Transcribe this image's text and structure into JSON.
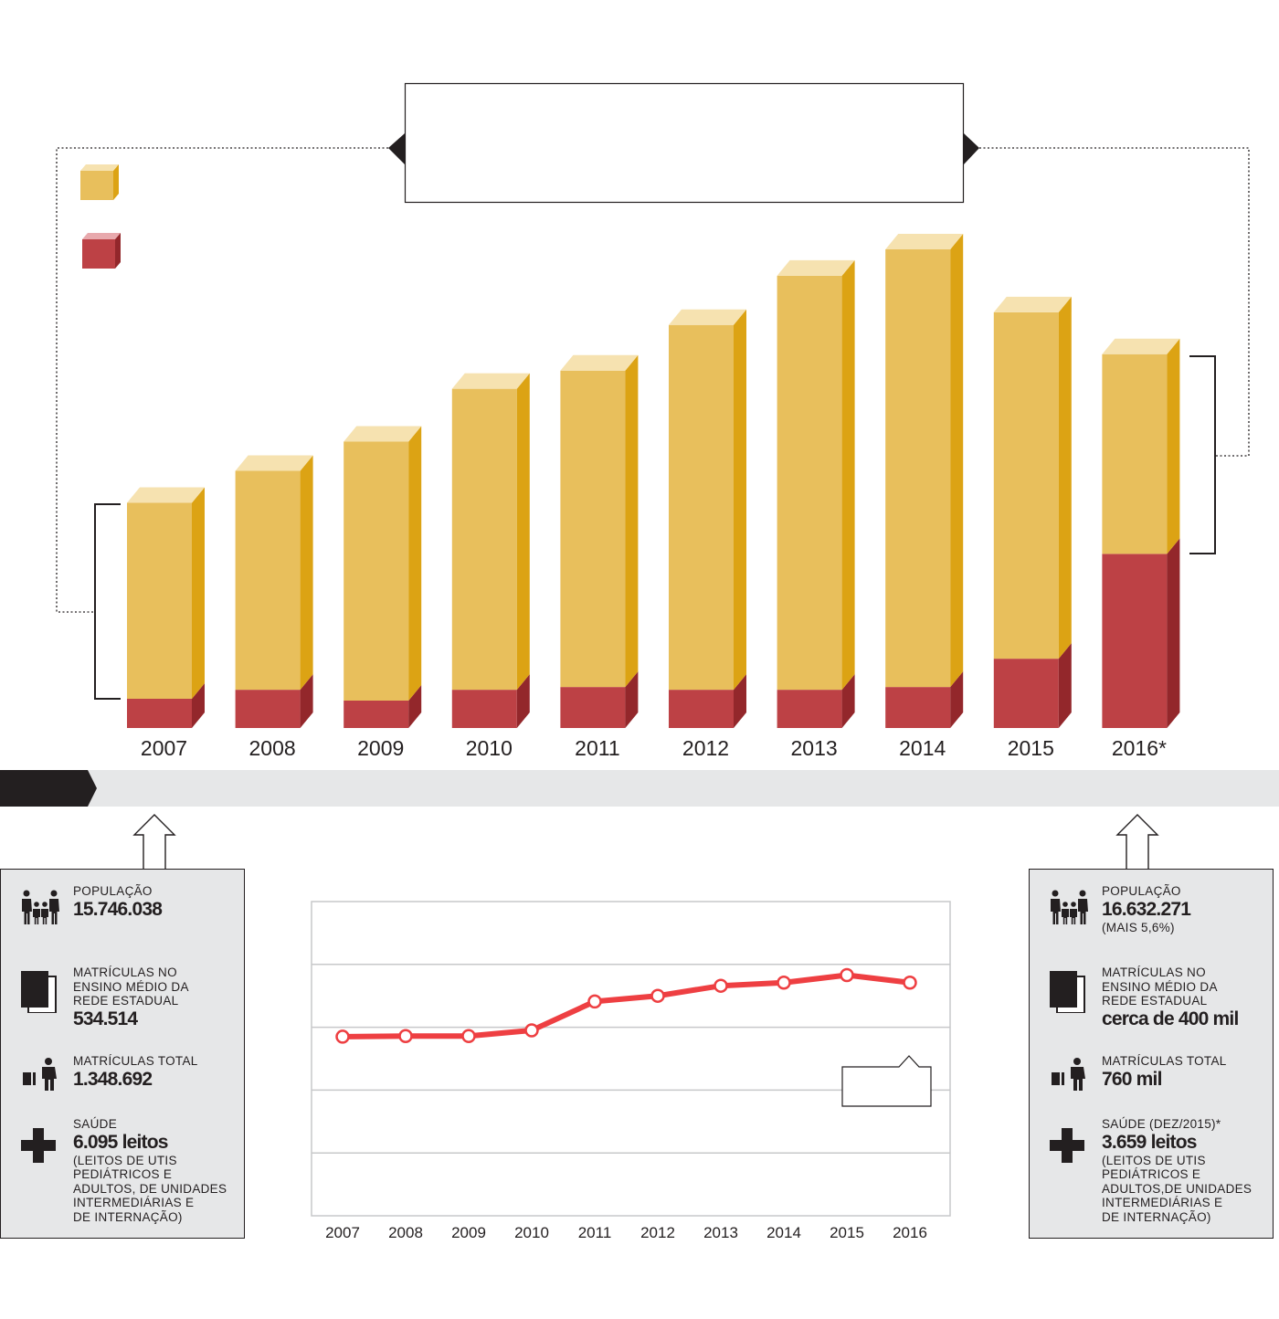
{
  "colors": {
    "yellow_front": "#e8bf5c",
    "yellow_top": "#f6e2b0",
    "yellow_side": "#dca314",
    "red_front": "#bd4145",
    "red_side": "#93272b",
    "line_red": "#ee3f42",
    "panel_gray": "#e6e7e8",
    "ink": "#231f20"
  },
  "chart_data": [
    {
      "type": "bar",
      "stacked": true,
      "categories": [
        "2007",
        "2008",
        "2009",
        "2010",
        "2011",
        "2012",
        "2013",
        "2014",
        "2015",
        "2016*"
      ],
      "series": [
        {
          "color": "red",
          "values": [
            32,
            42,
            30,
            42,
            45,
            42,
            42,
            45,
            76,
            191
          ]
        },
        {
          "color": "yellow",
          "values": [
            215,
            240,
            284,
            330,
            347,
            400,
            454,
            480,
            380,
            219
          ]
        }
      ],
      "title": "",
      "xlabel": "",
      "ylabel": "",
      "ylim": [
        0,
        560
      ],
      "grid": false,
      "legend": "top-left"
    },
    {
      "type": "line",
      "x": [
        "2007",
        "2008",
        "2009",
        "2010",
        "2011",
        "2012",
        "2013",
        "2014",
        "2015",
        "2016"
      ],
      "values": [
        2.85,
        2.86,
        2.86,
        2.95,
        3.41,
        3.5,
        3.66,
        3.71,
        3.83,
        3.71
      ],
      "ylim": [
        0,
        5
      ],
      "grid": true,
      "title": "",
      "xlabel": "",
      "ylabel": ""
    }
  ],
  "left_box": {
    "population_label": "POPULAÇÃO",
    "population_value": "15.746.038",
    "enrollment_hs_label": "MATRÍCULAS NO\nENSINO MÉDIO DA\nREDE ESTADUAL",
    "enrollment_hs_value": "534.514",
    "enrollment_total_label": "MATRÍCULAS TOTAL",
    "enrollment_total_value": "1.348.692",
    "health_label": "SAÚDE",
    "health_value": "6.095 leitos",
    "health_note": "(LEITOS DE UTIS\nPEDIÁTRICOS E\nADULTOS, DE UNIDADES\nINTERMEDIÁRIAS E\nDE INTERNAÇÃO)"
  },
  "right_box": {
    "population_label": "POPULAÇÃO",
    "population_value": "16.632.271",
    "population_note": "(MAIS 5,6%)",
    "enrollment_hs_label": "MATRÍCULAS NO\nENSINO MÉDIO DA\nREDE ESTADUAL",
    "enrollment_hs_value": "cerca de 400 mil",
    "enrollment_total_label": "MATRÍCULAS TOTAL",
    "enrollment_total_value": "760 mil",
    "health_label": "SAÚDE (DEZ/2015)*",
    "health_value": "3.659 leitos",
    "health_note": "(LEITOS DE UTIS\nPEDIÁTRICOS E\nADULTOS,DE UNIDADES\nINTERMEDIÁRIAS E\nDE INTERNAÇÃO)"
  },
  "icons": {
    "population": "family-icon",
    "enrollment_hs": "books-icon",
    "enrollment_total": "student-icon",
    "health": "health-cross-icon"
  }
}
